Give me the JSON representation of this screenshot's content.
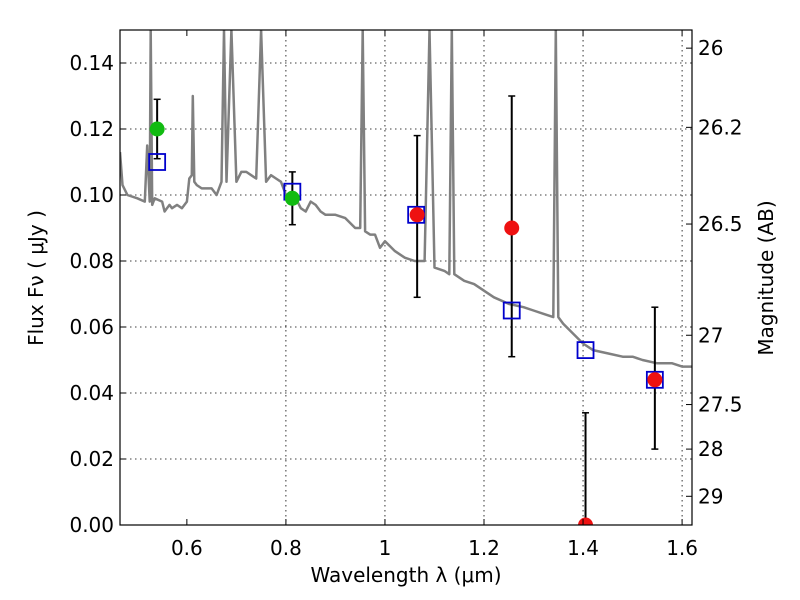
{
  "chart_data": {
    "type": "scatter",
    "xlabel": "Wavelength  λ (μm)",
    "ylabel": "Flux  Fν  ( μJy )",
    "y2label": "Magnitude (AB)",
    "xlim": [
      0.465,
      1.62
    ],
    "ylim": [
      0.0,
      0.15
    ],
    "grid": true,
    "x_ticks": [
      0.6,
      0.8,
      1.0,
      1.2,
      1.4,
      1.6
    ],
    "x_tick_labels": [
      "0.6",
      "0.8",
      "1",
      "1.2",
      "1.4",
      "1.6"
    ],
    "y_ticks": [
      0.0,
      0.02,
      0.04,
      0.06,
      0.08,
      0.1,
      0.12,
      0.14
    ],
    "y_tick_labels": [
      "0.00",
      "0.02",
      "0.04",
      "0.06",
      "0.08",
      "0.10",
      "0.12",
      "0.14"
    ],
    "y2_ticks": [
      {
        "flux": 0.1445,
        "label": "26"
      },
      {
        "flux": 0.1205,
        "label": "26.2"
      },
      {
        "flux": 0.0912,
        "label": "26.5"
      },
      {
        "flux": 0.0575,
        "label": "27"
      },
      {
        "flux": 0.0365,
        "label": "27.5"
      },
      {
        "flux": 0.023,
        "label": "28"
      },
      {
        "flux": 0.0087,
        "label": "29"
      }
    ],
    "colors": {
      "model": "#808080",
      "model_points": "#0000cc",
      "green_points": "#11bb11",
      "red_points": "#ee1111",
      "errorbar": "#000000"
    },
    "series": [
      {
        "name": "model spectrum",
        "style": "line",
        "x": [
          0.465,
          0.47,
          0.48,
          0.5,
          0.515,
          0.52,
          0.525,
          0.527,
          0.53,
          0.535,
          0.55,
          0.555,
          0.56,
          0.565,
          0.57,
          0.58,
          0.59,
          0.6,
          0.605,
          0.61,
          0.612,
          0.615,
          0.62,
          0.63,
          0.65,
          0.66,
          0.67,
          0.675,
          0.68,
          0.69,
          0.7,
          0.71,
          0.72,
          0.73,
          0.74,
          0.75,
          0.76,
          0.77,
          0.78,
          0.79,
          0.8,
          0.81,
          0.82,
          0.83,
          0.84,
          0.85,
          0.86,
          0.87,
          0.88,
          0.9,
          0.92,
          0.94,
          0.95,
          0.955,
          0.96,
          0.97,
          0.98,
          0.99,
          1.0,
          1.02,
          1.04,
          1.06,
          1.08,
          1.09,
          1.1,
          1.12,
          1.13,
          1.135,
          1.14,
          1.16,
          1.18,
          1.2,
          1.22,
          1.25,
          1.28,
          1.3,
          1.32,
          1.34,
          1.345,
          1.35,
          1.36,
          1.38,
          1.4,
          1.42,
          1.45,
          1.48,
          1.5,
          1.52,
          1.55,
          1.58,
          1.6,
          1.62
        ],
        "y": [
          0.113,
          0.103,
          0.1,
          0.099,
          0.098,
          0.115,
          0.098,
          0.15,
          0.097,
          0.099,
          0.098,
          0.095,
          0.096,
          0.097,
          0.096,
          0.097,
          0.096,
          0.098,
          0.105,
          0.106,
          0.13,
          0.104,
          0.103,
          0.102,
          0.102,
          0.1,
          0.104,
          0.15,
          0.104,
          0.15,
          0.104,
          0.107,
          0.107,
          0.106,
          0.105,
          0.15,
          0.104,
          0.106,
          0.105,
          0.104,
          0.1,
          0.1,
          0.099,
          0.096,
          0.095,
          0.098,
          0.097,
          0.095,
          0.094,
          0.094,
          0.093,
          0.09,
          0.09,
          0.15,
          0.089,
          0.088,
          0.088,
          0.084,
          0.086,
          0.083,
          0.081,
          0.08,
          0.08,
          0.15,
          0.078,
          0.077,
          0.076,
          0.15,
          0.076,
          0.074,
          0.073,
          0.071,
          0.069,
          0.067,
          0.066,
          0.065,
          0.064,
          0.063,
          0.15,
          0.063,
          0.061,
          0.058,
          0.055,
          0.053,
          0.052,
          0.051,
          0.051,
          0.05,
          0.049,
          0.049,
          0.048,
          0.048
        ]
      },
      {
        "name": "model photometry",
        "style": "open-square",
        "points": [
          {
            "x": 0.54,
            "y": 0.11
          },
          {
            "x": 0.813,
            "y": 0.101
          },
          {
            "x": 1.063,
            "y": 0.094
          },
          {
            "x": 1.256,
            "y": 0.065
          },
          {
            "x": 1.405,
            "y": 0.053
          },
          {
            "x": 1.545,
            "y": 0.044
          }
        ]
      },
      {
        "name": "green observations",
        "style": "filled-circle",
        "points": [
          {
            "x": 0.54,
            "y": 0.12,
            "yerr_low": 0.111,
            "yerr_high": 0.129
          },
          {
            "x": 0.813,
            "y": 0.099,
            "yerr_low": 0.091,
            "yerr_high": 0.107
          }
        ]
      },
      {
        "name": "red observations",
        "style": "filled-circle",
        "points": [
          {
            "x": 1.065,
            "y": 0.094,
            "yerr_low": 0.069,
            "yerr_high": 0.118
          },
          {
            "x": 1.256,
            "y": 0.09,
            "yerr_low": 0.051,
            "yerr_high": 0.13
          },
          {
            "x": 1.405,
            "y": 0.0,
            "yerr_low": 0.0,
            "yerr_high": 0.034
          },
          {
            "x": 1.545,
            "y": 0.044,
            "yerr_low": 0.023,
            "yerr_high": 0.066
          }
        ]
      }
    ]
  }
}
